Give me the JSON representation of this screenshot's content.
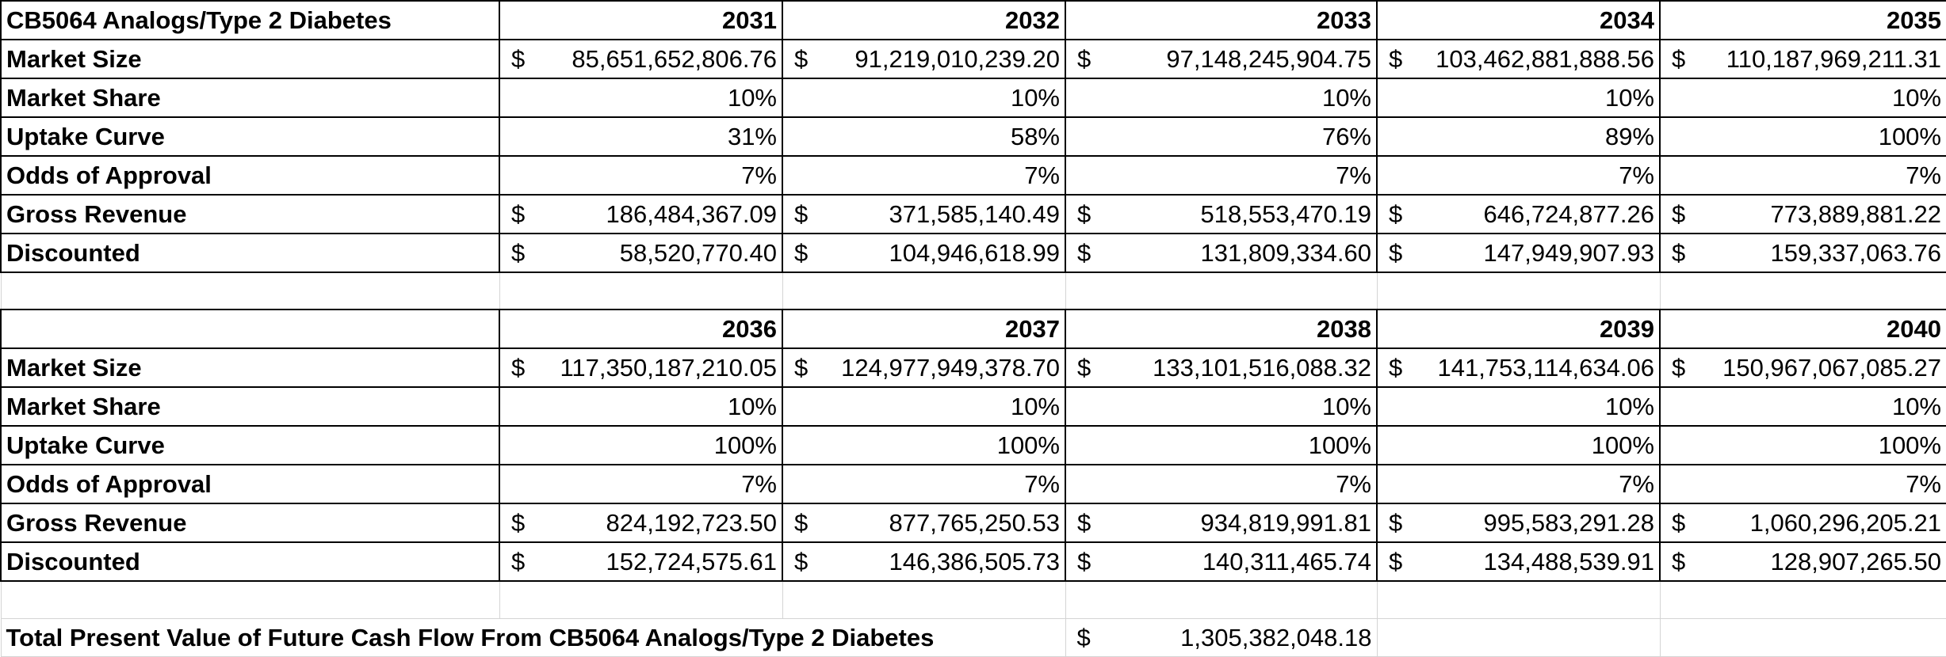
{
  "sheet": {
    "title": "CB5064 Analogs/Type 2 Diabetes",
    "currency_symbol": "$",
    "row_labels": {
      "market_size": "Market Size",
      "market_share": "Market Share",
      "uptake_curve": "Uptake Curve",
      "odds_of_approval": "Odds of Approval",
      "gross_revenue": "Gross Revenue",
      "discounted": "Discounted"
    },
    "block1": {
      "years": [
        "2031",
        "2032",
        "2033",
        "2034",
        "2035"
      ],
      "market_size": [
        "85,651,652,806.76",
        "91,219,010,239.20",
        "97,148,245,904.75",
        "103,462,881,888.56",
        "110,187,969,211.31"
      ],
      "market_share": [
        "10%",
        "10%",
        "10%",
        "10%",
        "10%"
      ],
      "uptake_curve": [
        "31%",
        "58%",
        "76%",
        "89%",
        "100%"
      ],
      "odds_of_approval": [
        "7%",
        "7%",
        "7%",
        "7%",
        "7%"
      ],
      "gross_revenue": [
        "186,484,367.09",
        "371,585,140.49",
        "518,553,470.19",
        "646,724,877.26",
        "773,889,881.22"
      ],
      "discounted": [
        "58,520,770.40",
        "104,946,618.99",
        "131,809,334.60",
        "147,949,907.93",
        "159,337,063.76"
      ]
    },
    "block2": {
      "years": [
        "2036",
        "2037",
        "2038",
        "2039",
        "2040"
      ],
      "market_size": [
        "117,350,187,210.05",
        "124,977,949,378.70",
        "133,101,516,088.32",
        "141,753,114,634.06",
        "150,967,067,085.27"
      ],
      "market_share": [
        "10%",
        "10%",
        "10%",
        "10%",
        "10%"
      ],
      "uptake_curve": [
        "100%",
        "100%",
        "100%",
        "100%",
        "100%"
      ],
      "odds_of_approval": [
        "7%",
        "7%",
        "7%",
        "7%",
        "7%"
      ],
      "gross_revenue": [
        "824,192,723.50",
        "877,765,250.53",
        "934,819,991.81",
        "995,583,291.28",
        "1,060,296,205.21"
      ],
      "discounted": [
        "152,724,575.61",
        "146,386,505.73",
        "140,311,465.74",
        "134,488,539.91",
        "128,907,265.50"
      ]
    },
    "total": {
      "label": "Total Present Value of Future Cash Flow From CB5064 Analogs/Type 2 Diabetes",
      "value": "1,305,382,048.18"
    }
  }
}
